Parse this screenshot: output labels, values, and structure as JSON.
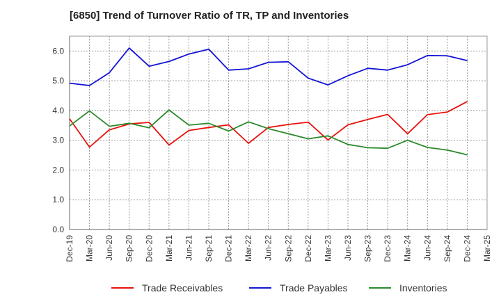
{
  "chart_data": {
    "type": "line",
    "title": "[6850]  Trend of Turnover Ratio of TR, TP and Inventories",
    "xlabel": "",
    "ylabel": "",
    "x": [
      "Dec-19",
      "Mar-20",
      "Jun-20",
      "Sep-20",
      "Dec-20",
      "Mar-21",
      "Jun-21",
      "Sep-21",
      "Dec-21",
      "Mar-22",
      "Jun-22",
      "Sep-22",
      "Dec-22",
      "Mar-23",
      "Jun-23",
      "Sep-23",
      "Dec-23",
      "Mar-24",
      "Jun-24",
      "Sep-24",
      "Dec-24",
      "Mar-25"
    ],
    "yticks": [
      "0.0",
      "1.0",
      "2.0",
      "3.0",
      "4.0",
      "5.0",
      "6.0"
    ],
    "ylim": [
      0,
      6.5
    ],
    "grid": true,
    "legend_position": "bottom",
    "series": [
      {
        "name": "Trade Receivables",
        "color": "#e8120c",
        "values": [
          3.72,
          2.77,
          3.35,
          3.55,
          3.6,
          2.84,
          3.33,
          3.43,
          3.52,
          2.9,
          3.43,
          3.53,
          3.61,
          3.01,
          3.52,
          3.7,
          3.87,
          3.22,
          3.86,
          3.95,
          4.3,
          null
        ]
      },
      {
        "name": "Trade Payables",
        "color": "#1414d6",
        "values": [
          4.92,
          4.84,
          5.27,
          6.1,
          5.49,
          5.65,
          5.9,
          6.06,
          5.36,
          5.4,
          5.62,
          5.64,
          5.09,
          4.86,
          5.17,
          5.42,
          5.36,
          5.54,
          5.85,
          5.84,
          5.68,
          null
        ]
      },
      {
        "name": "Inventories",
        "color": "#2a8a2a",
        "values": [
          3.48,
          3.99,
          3.47,
          3.57,
          3.42,
          4.02,
          3.51,
          3.57,
          3.31,
          3.62,
          3.39,
          3.22,
          3.05,
          3.15,
          2.86,
          2.75,
          2.73,
          3.0,
          2.76,
          2.67,
          2.51,
          null
        ]
      }
    ]
  }
}
